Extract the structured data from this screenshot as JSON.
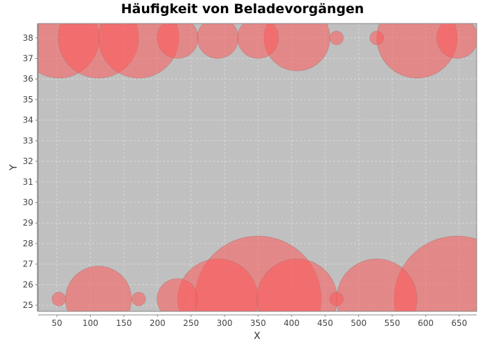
{
  "chart_data": {
    "type": "scatter",
    "title": "Häufigkeit von Beladevorgängen",
    "xlabel": "X",
    "ylabel": "Y",
    "xlim": [
      22,
      676
    ],
    "ylim": [
      24.7,
      38.7
    ],
    "xticks": [
      50,
      100,
      150,
      200,
      250,
      300,
      350,
      400,
      450,
      500,
      550,
      600,
      650
    ],
    "yticks": [
      25,
      26,
      27,
      28,
      29,
      30,
      31,
      32,
      33,
      34,
      35,
      36,
      37,
      38
    ],
    "grid": true,
    "bubble_color": "#ff5a5a",
    "plot_background": "#c0c0c0",
    "points": [
      {
        "x": 53,
        "y": 38,
        "size": 1.0
      },
      {
        "x": 112,
        "y": 38,
        "size": 1.0
      },
      {
        "x": 172,
        "y": 38,
        "size": 1.0
      },
      {
        "x": 230,
        "y": 38,
        "size": 0.51
      },
      {
        "x": 290,
        "y": 38,
        "size": 0.51
      },
      {
        "x": 350,
        "y": 38,
        "size": 0.51
      },
      {
        "x": 408,
        "y": 38,
        "size": 0.82
      },
      {
        "x": 467,
        "y": 38,
        "size": 0.2
      },
      {
        "x": 527,
        "y": 38,
        "size": 0.2
      },
      {
        "x": 587,
        "y": 38,
        "size": 1.0
      },
      {
        "x": 647,
        "y": 38,
        "size": 0.51
      },
      {
        "x": 53,
        "y": 25.3,
        "size": 0.2
      },
      {
        "x": 112,
        "y": 25.3,
        "size": 0.82
      },
      {
        "x": 172,
        "y": 25.3,
        "size": 0.2
      },
      {
        "x": 230,
        "y": 25.3,
        "size": 0.51
      },
      {
        "x": 290,
        "y": 25.3,
        "size": 1.0
      },
      {
        "x": 350,
        "y": 25.3,
        "size": 1.57
      },
      {
        "x": 408,
        "y": 25.3,
        "size": 1.0
      },
      {
        "x": 467,
        "y": 25.3,
        "size": 0.2
      },
      {
        "x": 527,
        "y": 25.3,
        "size": 1.0
      },
      {
        "x": 647,
        "y": 25.3,
        "size": 1.57
      }
    ]
  }
}
